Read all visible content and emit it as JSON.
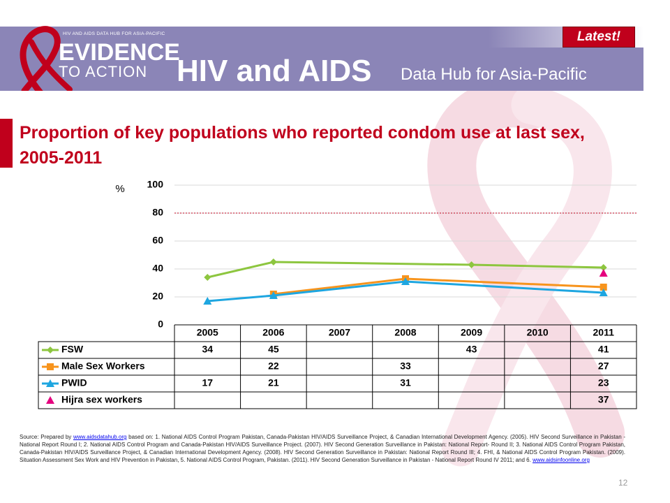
{
  "header": {
    "logo_small_text": "HIV AND AIDS DATA HUB FOR ASIA-PACIFIC",
    "logo_line1": "EVIDENCE",
    "logo_line2": "TO ACTION",
    "badge": "Latest!",
    "title": "HIV and AIDS",
    "subtitle": "Data Hub for Asia-Pacific"
  },
  "slide": {
    "title": "Proportion of key populations who reported condom use at last sex, 2005-2011",
    "page_number": "12"
  },
  "colors": {
    "banner": "#8b85b7",
    "accent_red": "#c0001c",
    "fsw": "#8dc63f",
    "msw": "#f7941d",
    "pwid": "#1ea6e0",
    "hijra": "#e5007e"
  },
  "chart_data": {
    "type": "line",
    "ylabel": "%",
    "ylim": [
      0,
      100
    ],
    "yticks": [
      "0",
      "20",
      "40",
      "60",
      "80",
      "100"
    ],
    "categories": [
      "2005",
      "2006",
      "2007",
      "2008",
      "2009",
      "2010",
      "2011"
    ],
    "reference_line": 80,
    "series": [
      {
        "name": "FSW",
        "marker": "diamond",
        "color": "#8dc63f",
        "values": [
          34,
          45,
          null,
          null,
          43,
          null,
          41
        ]
      },
      {
        "name": "Male Sex Workers",
        "marker": "square",
        "color": "#f7941d",
        "values": [
          null,
          22,
          null,
          33,
          null,
          null,
          27
        ]
      },
      {
        "name": "PWID",
        "marker": "triangle",
        "color": "#1ea6e0",
        "values": [
          17,
          21,
          null,
          31,
          null,
          null,
          23
        ]
      },
      {
        "name": "Hijra sex workers",
        "marker": "triangle",
        "color": "#e5007e",
        "values": [
          null,
          null,
          null,
          null,
          null,
          null,
          37
        ]
      }
    ]
  },
  "source": {
    "prefix": "Source: Prepared by ",
    "link1": "www.aidsdatahub.org",
    "body": " based on: 1. National AIDS Control Program Pakistan, Canada-Pakistan HIV/AIDS Surveillance Project, & Canadian International Development Agency. (2005). HIV Second Surveillance in Pakistan - National Report Round I; 2. National AIDS Control Program and Canada-Pakistan HIV/AIDS Surveillance Project. (2007). HIV Second Generation Surveillance in Pakistan: National Report- Round II; 3. National AIDS Control Program Pakistan, Canada-Pakistan HIV/AIDS Surveillance Project, & Canadian International Development Agency. (2008). HIV Second Generation Surveillance in Pakistan: National Report Round III; 4. FHI, & National AIDS Control Program Pakistan. (2009). Situation Assessment Sex Work and HIV Prevention in Pakistan, 5. National AIDS Control Program, Pakistan. (2011). HIV Second Generation Surveillance in Pakistan - National Report Round IV 2011; and 6. ",
    "link2": "www.aidsinfoonline.org"
  }
}
